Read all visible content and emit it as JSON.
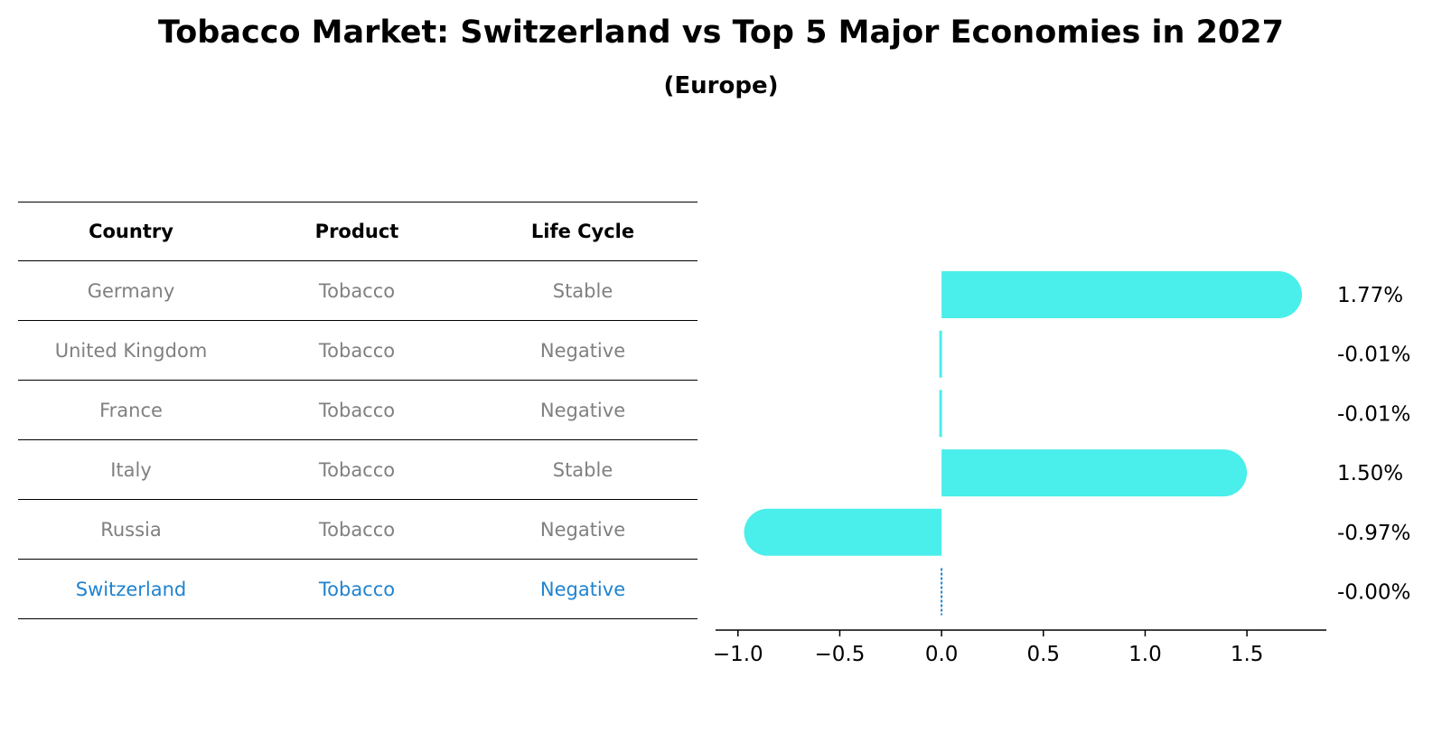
{
  "title": "Tobacco Market: Switzerland vs Top 5 Major Economies in 2027",
  "subtitle": "(Europe)",
  "table": {
    "headers": [
      "Country",
      "Product",
      "Life Cycle"
    ],
    "rows": [
      [
        "Germany",
        "Tobacco",
        "Stable"
      ],
      [
        "United Kingdom",
        "Tobacco",
        "Negative"
      ],
      [
        "France",
        "Tobacco",
        "Negative"
      ],
      [
        "Italy",
        "Tobacco",
        "Stable"
      ],
      [
        "Russia",
        "Tobacco",
        "Negative"
      ],
      [
        "Switzerland",
        "Tobacco",
        "Negative"
      ]
    ]
  },
  "chart_data": {
    "type": "bar",
    "orientation": "horizontal",
    "categories": [
      "Germany",
      "United Kingdom",
      "France",
      "Italy",
      "Russia",
      "Switzerland"
    ],
    "values": [
      1.77,
      -0.01,
      -0.01,
      1.5,
      -0.97,
      -0.0
    ],
    "value_labels": [
      "1.77%",
      "-0.01%",
      "-0.01%",
      "1.50%",
      "-0.97%",
      "-0.00%"
    ],
    "xlim": [
      -1.11,
      1.89
    ],
    "xticks": [
      -1.0,
      -0.5,
      0.0,
      0.5,
      1.0,
      1.5
    ],
    "xtick_labels": [
      "−1.0",
      "−0.5",
      "0.0",
      "0.5",
      "1.0",
      "1.5"
    ],
    "highlight": "Switzerland",
    "colors": {
      "bar": "#4aeeea",
      "highlight_line": "#1f83d0",
      "highlight_text": "#1f83d0",
      "muted_text": "#808080"
    },
    "grid": false
  }
}
